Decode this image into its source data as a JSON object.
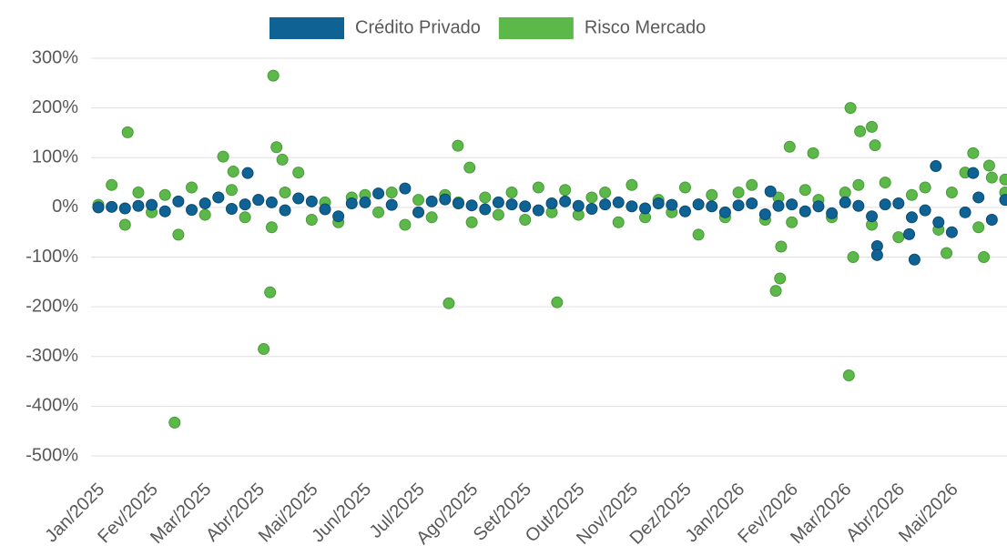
{
  "chart_data": {
    "type": "scatter",
    "xlim": [
      0,
      17
    ],
    "xticks": [
      {
        "value": 0,
        "label": "Jan/2025"
      },
      {
        "value": 1,
        "label": "Fev/2025"
      },
      {
        "value": 2,
        "label": "Mar/2025"
      },
      {
        "value": 3,
        "label": "Abr/2025"
      },
      {
        "value": 4,
        "label": "Mai/2025"
      },
      {
        "value": 5,
        "label": "Jun/2025"
      },
      {
        "value": 6,
        "label": "Jul/2025"
      },
      {
        "value": 7,
        "label": "Ago/2025"
      },
      {
        "value": 8,
        "label": "Set/2025"
      },
      {
        "value": 9,
        "label": "Out/2025"
      },
      {
        "value": 10,
        "label": "Nov/2025"
      },
      {
        "value": 11,
        "label": "Dez/2025"
      },
      {
        "value": 12,
        "label": "Jan/2026"
      },
      {
        "value": 13,
        "label": "Fev/2026"
      },
      {
        "value": 14,
        "label": "Mar/2026"
      },
      {
        "value": 15,
        "label": "Abr/2026"
      },
      {
        "value": 16,
        "label": "Mai/2026"
      }
    ],
    "ylim": [
      -500,
      300
    ],
    "yticks": [
      {
        "value": -500,
        "label": "-500%"
      },
      {
        "value": -400,
        "label": "-400%"
      },
      {
        "value": -300,
        "label": "-300%"
      },
      {
        "value": -200,
        "label": "-200%"
      },
      {
        "value": -100,
        "label": "-100%"
      },
      {
        "value": 0,
        "label": "0%"
      },
      {
        "value": 100,
        "label": "100%"
      },
      {
        "value": 200,
        "label": "200%"
      },
      {
        "value": 300,
        "label": "300%"
      }
    ],
    "grid": true,
    "legend": "top",
    "series": [
      {
        "name": "Crédito Privado",
        "color": "#0f6294",
        "stroke": "#0b4a70",
        "x": [
          0,
          0.25,
          0.5,
          0.75,
          1,
          1.25,
          1.5,
          1.75,
          2,
          2.25,
          2.5,
          2.75,
          3,
          3.25,
          3.5,
          3.75,
          4,
          4.25,
          4.5,
          4.75,
          5,
          5.25,
          5.5,
          5.75,
          6,
          6.25,
          6.5,
          6.75,
          7,
          7.25,
          7.5,
          7.75,
          8,
          8.25,
          8.5,
          8.75,
          9,
          9.25,
          9.5,
          9.75,
          10,
          10.25,
          10.5,
          10.75,
          11,
          11.25,
          11.5,
          11.75,
          12,
          12.25,
          12.5,
          12.75,
          13,
          13.25,
          13.5,
          13.75,
          14,
          14.25,
          14.5,
          14.75,
          15,
          15.25,
          15.5,
          15.75,
          16,
          16.25,
          16.5,
          16.75,
          17,
          2.8,
          15.7,
          16.4,
          15.3,
          14.6,
          14.6,
          15.2,
          12.6
        ],
        "values": [
          0,
          1,
          -2,
          3,
          5,
          -8,
          12,
          -5,
          8,
          20,
          -3,
          6,
          15,
          10,
          -6,
          18,
          12,
          -4,
          -18,
          8,
          10,
          28,
          5,
          38,
          -10,
          12,
          16,
          8,
          4,
          -4,
          10,
          6,
          2,
          -6,
          8,
          12,
          3,
          -3,
          6,
          10,
          2,
          -2,
          8,
          5,
          -8,
          6,
          2,
          -10,
          4,
          8,
          -14,
          3,
          6,
          -8,
          2,
          -12,
          10,
          3,
          -18,
          6,
          8,
          -20,
          -6,
          -30,
          -50,
          -10,
          20,
          -25,
          15,
          69,
          83,
          69,
          -105,
          -78,
          -96,
          -54,
          32
        ]
      },
      {
        "name": "Risco Mercado",
        "color": "#5db84a",
        "stroke": "#4a9a3a",
        "x": [
          0,
          0.25,
          0.5,
          0.75,
          1,
          1.25,
          1.5,
          1.75,
          2,
          2.25,
          2.5,
          2.75,
          3,
          3.25,
          3.5,
          3.75,
          4,
          4.25,
          4.5,
          4.75,
          5,
          5.25,
          5.5,
          5.75,
          6,
          6.25,
          6.5,
          6.75,
          7,
          7.25,
          7.5,
          7.75,
          8,
          8.25,
          8.5,
          8.75,
          9,
          9.25,
          9.5,
          9.75,
          10,
          10.25,
          10.5,
          10.75,
          11,
          11.25,
          11.5,
          11.75,
          12,
          12.25,
          12.5,
          12.75,
          13,
          13.25,
          13.5,
          13.75,
          14,
          14.25,
          14.5,
          14.75,
          15,
          15.25,
          15.5,
          15.75,
          16,
          16.25,
          16.5,
          16.75,
          17,
          0.55,
          1.43,
          2.34,
          2.53,
          3.28,
          3.34,
          3.1,
          3.22,
          3.45,
          6.57,
          6.74,
          6.96,
          8.6,
          12.96,
          12.7,
          12.78,
          12.8,
          13.4,
          14.1,
          14.07,
          14.28,
          14.5,
          14.56,
          14.15,
          16.4,
          16.7,
          16.6,
          15.9,
          17
        ],
        "values": [
          5,
          45,
          -35,
          30,
          -10,
          25,
          -55,
          40,
          -15,
          20,
          35,
          -20,
          15,
          -40,
          30,
          70,
          -25,
          10,
          -30,
          20,
          25,
          -10,
          30,
          -35,
          15,
          -20,
          25,
          10,
          -30,
          20,
          -15,
          30,
          -25,
          40,
          -10,
          35,
          -15,
          20,
          30,
          -30,
          45,
          -20,
          15,
          -10,
          40,
          -55,
          25,
          -20,
          30,
          45,
          -25,
          20,
          -30,
          35,
          15,
          -20,
          30,
          45,
          -35,
          50,
          -60,
          25,
          40,
          -45,
          30,
          70,
          -40,
          60,
          30,
          151,
          -433,
          102,
          72,
          265,
          121,
          -285,
          -171,
          96,
          -193,
          124,
          80,
          -191,
          122,
          -168,
          -143,
          -79,
          109,
          200,
          -338,
          153,
          162,
          125,
          -100,
          109,
          84,
          -100,
          -92,
          56
        ]
      }
    ]
  }
}
